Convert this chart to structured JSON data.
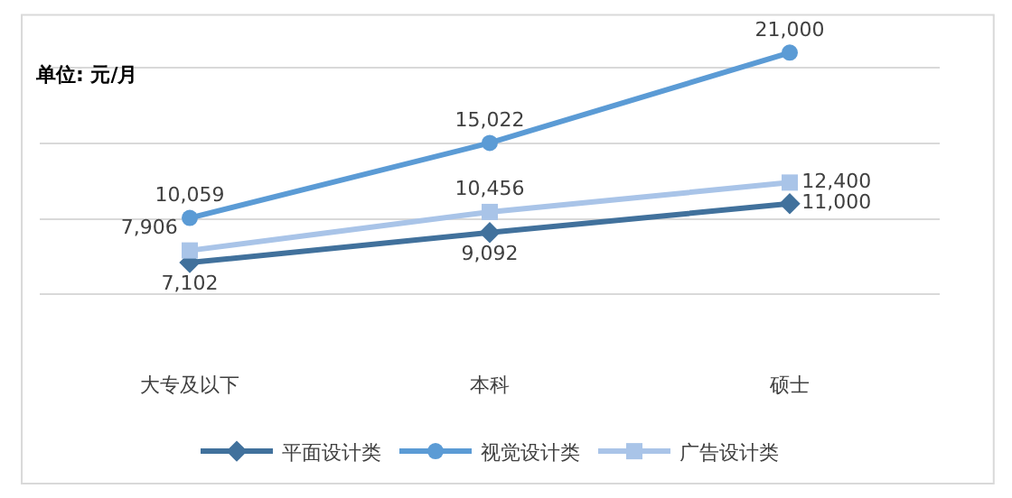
{
  "chart_data": {
    "type": "line",
    "categories": [
      "大专及以下",
      "本科",
      "硕士"
    ],
    "series": [
      {
        "name": "平面设计类",
        "color": "#41719c",
        "marker": "diamond",
        "values": [
          7102,
          9092,
          11000
        ],
        "value_labels": [
          "7,102",
          "9,092",
          "11,000"
        ]
      },
      {
        "name": "视觉设计类",
        "color": "#5b9bd5",
        "marker": "circle",
        "values": [
          10059,
          15022,
          21000
        ],
        "value_labels": [
          "10,059",
          "15,022",
          "21,000"
        ]
      },
      {
        "name": "广告设计类",
        "color": "#a9c4e8",
        "marker": "square",
        "values": [
          7906,
          10456,
          12400
        ],
        "value_labels": [
          "7,906",
          "10,456",
          "12,400"
        ]
      }
    ],
    "annotations": [
      "单位: 元/月"
    ],
    "tick_labels": "x",
    "grid": "y",
    "legend": "bottom",
    "line_style": "solid"
  }
}
